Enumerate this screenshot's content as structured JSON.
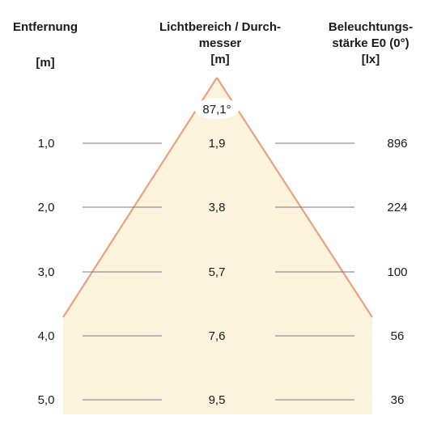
{
  "headers": {
    "distance": {
      "title": "Entfernung",
      "unit": "[m]"
    },
    "diameter": {
      "title_line1": "Lichtbereich / Durch-",
      "title_line2": "messer",
      "unit": "[m]"
    },
    "illuminance": {
      "title_line1": "Beleuchtungs-",
      "title_line2": "stärke E0 (0°)",
      "unit": "[lx]"
    }
  },
  "beam_angle": "87,1°",
  "rows": [
    {
      "distance": "1,0",
      "diameter": "1,9",
      "illuminance": "896"
    },
    {
      "distance": "2,0",
      "diameter": "3,8",
      "illuminance": "224"
    },
    {
      "distance": "3,0",
      "diameter": "5,7",
      "illuminance": "100"
    },
    {
      "distance": "4,0",
      "diameter": "7,6",
      "illuminance": "56"
    },
    {
      "distance": "5,0",
      "diameter": "9,5",
      "illuminance": "36"
    }
  ],
  "colors": {
    "beam_fill": "#fcf3dc",
    "beam_edge": "#e9a17f",
    "row_line": "#7a7a7a"
  }
}
